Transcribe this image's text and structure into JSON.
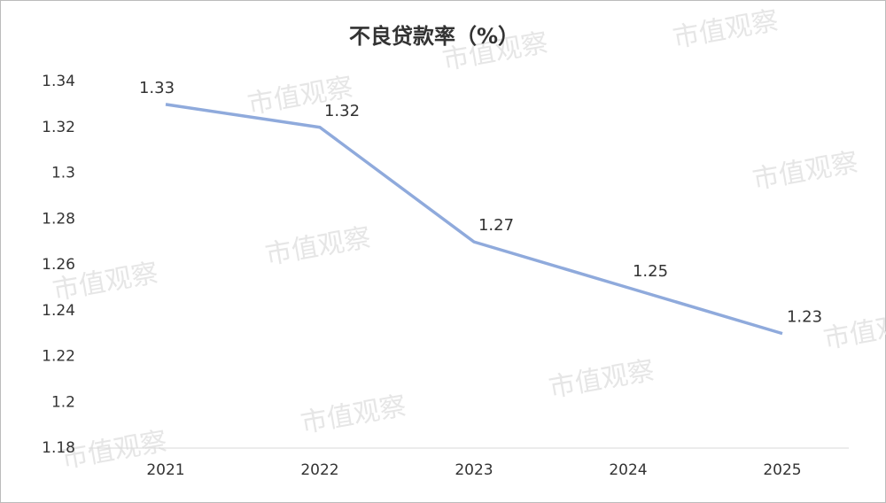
{
  "chart_data": {
    "type": "line",
    "title": "不良贷款率（%）",
    "categories": [
      "2021",
      "2022",
      "2023",
      "2024",
      "2025"
    ],
    "series": [
      {
        "name": null,
        "color": "#8faadc",
        "values": [
          1.33,
          1.32,
          1.27,
          1.25,
          1.23
        ]
      }
    ],
    "ylim": [
      1.18,
      1.34
    ],
    "yticks": [
      1.18,
      1.2,
      1.22,
      1.24,
      1.26,
      1.28,
      1.3,
      1.32,
      1.34
    ],
    "grid": false
  },
  "watermark": "市值观察"
}
